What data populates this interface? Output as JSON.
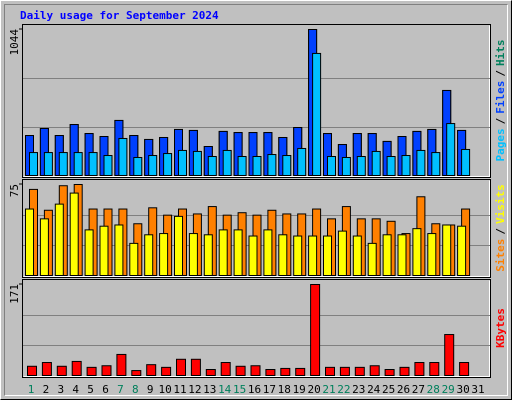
{
  "title": "Daily usage for September 2024",
  "legend_separator": "/",
  "chart_data": [
    {
      "type": "bar",
      "ylim": [
        0,
        1044
      ],
      "yticks": [
        1044
      ],
      "series": [
        {
          "name": "Pages",
          "color": "#00c0ff",
          "values": [
            170,
            170,
            170,
            170,
            170,
            149,
            270,
            135,
            149,
            163,
            185,
            178,
            142,
            185,
            142,
            142,
            156,
            149,
            199,
            874,
            142,
            135,
            142,
            178,
            142,
            149,
            185,
            170,
            376,
            192,
            null
          ]
        },
        {
          "name": "Files",
          "color": "#0040ff",
          "values": [
            291,
            341,
            291,
            369,
            305,
            284,
            398,
            291,
            263,
            277,
            334,
            327,
            213,
            320,
            312,
            312,
            312,
            277,
            348,
            1044,
            305,
            227,
            305,
            305,
            249,
            284,
            320,
            334,
            611,
            327,
            null
          ]
        },
        {
          "name": "Hits",
          "color": "#00805c",
          "values": [
            291,
            341,
            291,
            369,
            305,
            284,
            398,
            291,
            263,
            277,
            334,
            327,
            213,
            320,
            312,
            312,
            312,
            277,
            348,
            1044,
            305,
            227,
            305,
            305,
            249,
            284,
            320,
            334,
            611,
            327,
            null
          ]
        }
      ]
    },
    {
      "type": "bar",
      "ylim": [
        0,
        75
      ],
      "yticks": [
        75
      ],
      "series": [
        {
          "name": "Sites",
          "color": "#ff8000",
          "values": [
            71,
            54,
            74,
            75,
            55,
            55,
            55,
            43,
            56,
            50,
            55,
            51,
            57,
            50,
            52,
            50,
            54,
            51,
            51,
            55,
            47,
            57,
            47,
            47,
            45,
            35,
            65,
            43,
            42,
            55,
            null
          ]
        },
        {
          "name": "Visits",
          "color": "#ffff00",
          "values": [
            55,
            47,
            59,
            68,
            38,
            41,
            42,
            27,
            34,
            35,
            49,
            35,
            34,
            38,
            38,
            33,
            38,
            34,
            33,
            33,
            33,
            37,
            33,
            27,
            34,
            34,
            39,
            35,
            42,
            41,
            null
          ]
        }
      ]
    },
    {
      "type": "bar",
      "ylim": [
        0,
        171
      ],
      "yticks": [
        171
      ],
      "categories": [
        "1",
        "2",
        "3",
        "4",
        "5",
        "6",
        "7",
        "8",
        "9",
        "10",
        "11",
        "12",
        "13",
        "14",
        "15",
        "16",
        "17",
        "18",
        "19",
        "20",
        "21",
        "22",
        "23",
        "24",
        "25",
        "26",
        "27",
        "28",
        "29",
        "30",
        "31"
      ],
      "label_colors": [
        "#00805c",
        "#000000",
        "#000000",
        "#000000",
        "#000000",
        "#000000",
        "#00805c",
        "#00805c",
        "#000000",
        "#000000",
        "#000000",
        "#000000",
        "#000000",
        "#00805c",
        "#00805c",
        "#000000",
        "#000000",
        "#000000",
        "#000000",
        "#000000",
        "#00805c",
        "#00805c",
        "#000000",
        "#000000",
        "#000000",
        "#000000",
        "#000000",
        "#00805c",
        "#00805c",
        "#000000",
        "#000000"
      ],
      "series": [
        {
          "name": "KBytes",
          "color": "#ff0000",
          "values": [
            19,
            26,
            19,
            28,
            17,
            20,
            41,
            11,
            22,
            17,
            32,
            32,
            13,
            26,
            19,
            20,
            13,
            15,
            15,
            171,
            17,
            17,
            17,
            20,
            13,
            17,
            26,
            26,
            78,
            26,
            null
          ]
        }
      ]
    }
  ]
}
